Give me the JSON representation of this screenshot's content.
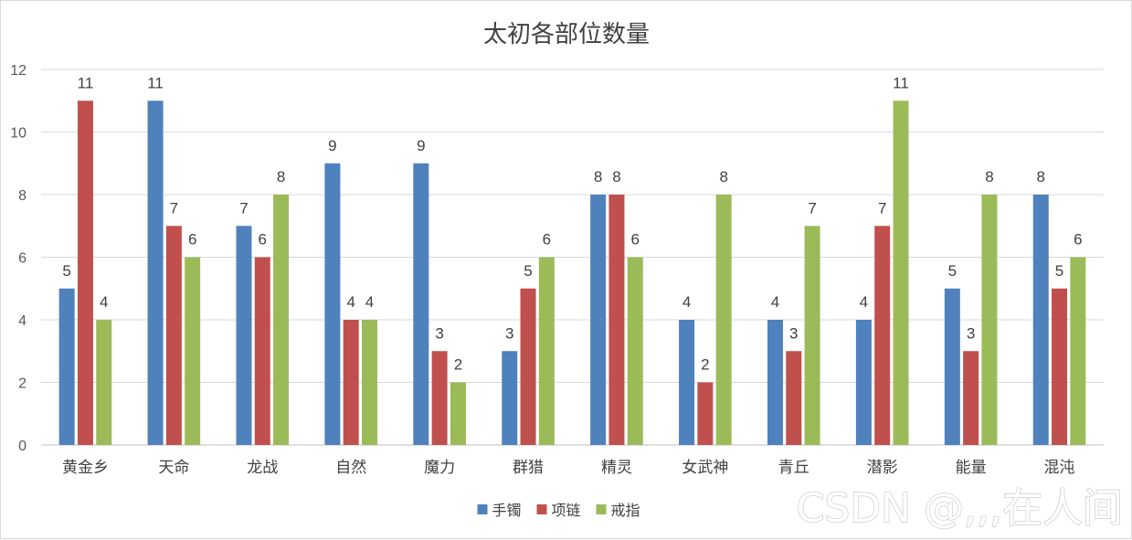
{
  "chart_data": {
    "type": "bar",
    "title": "太初各部位数量",
    "xlabel": "",
    "ylabel": "",
    "ylim": [
      0,
      12
    ],
    "yticks": [
      0,
      2,
      4,
      6,
      8,
      10,
      12
    ],
    "grid": true,
    "legend_position": "bottom",
    "categories": [
      "黄金乡",
      "天命",
      "龙战",
      "自然",
      "魔力",
      "群猎",
      "精灵",
      "女武神",
      "青丘",
      "潜影",
      "能量",
      "混沌"
    ],
    "series": [
      {
        "name": "手镯",
        "color": "#4f81bd",
        "values": [
          5,
          11,
          7,
          9,
          9,
          3,
          8,
          4,
          4,
          4,
          5,
          8
        ]
      },
      {
        "name": "项链",
        "color": "#c0504d",
        "values": [
          11,
          7,
          6,
          4,
          3,
          5,
          8,
          2,
          3,
          7,
          3,
          5
        ]
      },
      {
        "name": "戒指",
        "color": "#9bbb59",
        "values": [
          4,
          6,
          8,
          4,
          2,
          6,
          6,
          8,
          7,
          11,
          8,
          6
        ]
      }
    ]
  },
  "watermark": {
    "text": "CSDN @,,,在人间"
  },
  "colors": {
    "gridline": "#d9d9d9",
    "axis": "#bfbfbf"
  }
}
